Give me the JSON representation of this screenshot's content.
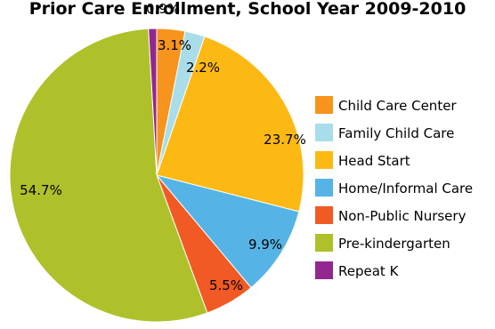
{
  "chart_data": {
    "type": "pie",
    "title": "Prior Care Enrollment, School Year 2009-2010",
    "start_angle_deg": 0,
    "direction": "clockwise",
    "slices": [
      {
        "label": "Child Care Center",
        "value": 3.1,
        "display": "3.1%",
        "color": "#F7941D"
      },
      {
        "label": "Family Child Care",
        "value": 2.2,
        "display": "2.2%",
        "color": "#A8DDE9"
      },
      {
        "label": "Head Start",
        "value": 23.7,
        "display": "23.7%",
        "color": "#FDB913"
      },
      {
        "label": "Home/Informal Care",
        "value": 9.9,
        "display": "9.9%",
        "color": "#55B4E5"
      },
      {
        "label": "Non-Public Nursery",
        "value": 5.5,
        "display": "5.5%",
        "color": "#F15A24"
      },
      {
        "label": "Pre-kindergarten",
        "value": 54.7,
        "display": "54.7%",
        "color": "#AEC12A"
      },
      {
        "label": "Repeat K",
        "value": 0.9,
        "display": "0.9%",
        "color": "#92278F"
      }
    ],
    "legend_position": "right"
  }
}
